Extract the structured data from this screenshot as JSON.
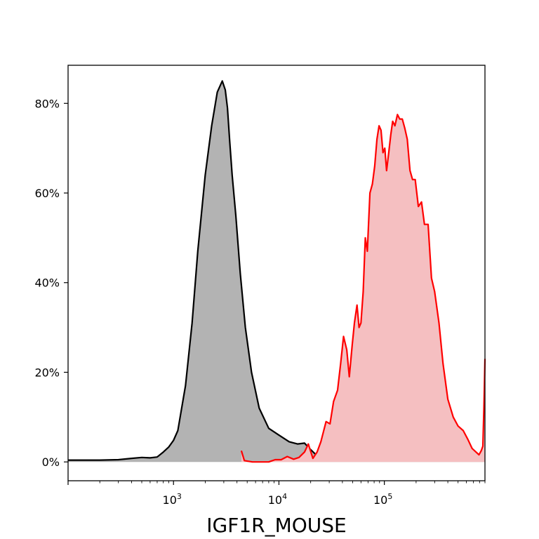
{
  "chart_data": {
    "type": "area",
    "title": "",
    "xlabel": "IGF1R_MOUSE",
    "ylabel": "",
    "x_scale": "log",
    "xlim": [
      100,
      900000
    ],
    "ylim": [
      -0.042,
      0.885
    ],
    "x_ticks": [
      {
        "value": 1000,
        "base": "10",
        "exp": "3"
      },
      {
        "value": 10000,
        "base": "10",
        "exp": "4"
      },
      {
        "value": 100000,
        "base": "10",
        "exp": "5"
      }
    ],
    "y_ticks": [
      {
        "value": 0.0,
        "label": "0%"
      },
      {
        "value": 0.2,
        "label": "20%"
      },
      {
        "value": 0.4,
        "label": "40%"
      },
      {
        "value": 0.6,
        "label": "60%"
      },
      {
        "value": 0.8,
        "label": "80%"
      }
    ],
    "grid": false,
    "legend": "none",
    "series": [
      {
        "color": "#000000",
        "fill": "#b3b3b3",
        "x": [
          100,
          150,
          200,
          300,
          400,
          500,
          600,
          700,
          800,
          900,
          1000,
          1100,
          1300,
          1500,
          1700,
          2000,
          2300,
          2600,
          2900,
          3100,
          3250,
          3400,
          3600,
          3900,
          4300,
          4800,
          5500,
          6500,
          8000,
          10000,
          12500,
          15000,
          17500,
          19500,
          22000,
          26000,
          33000,
          45000,
          65000,
          100000,
          150000,
          220000,
          330000,
          480000,
          650000,
          800000,
          900000
        ],
        "y": [
          0.004,
          0.004,
          0.004,
          0.005,
          0.008,
          0.01,
          0.009,
          0.011,
          0.022,
          0.033,
          0.048,
          0.07,
          0.17,
          0.31,
          0.47,
          0.64,
          0.75,
          0.825,
          0.85,
          0.83,
          0.79,
          0.72,
          0.64,
          0.55,
          0.42,
          0.3,
          0.2,
          0.12,
          0.075,
          0.06,
          0.045,
          0.04,
          0.042,
          0.03,
          0.018,
          0.012,
          0.011,
          0.009,
          0.008,
          0.006,
          0.005,
          0.004,
          0.005,
          0.004,
          0.003,
          0.004,
          0.01
        ]
      },
      {
        "color": "#ff0000",
        "fill": "#f5bfc1",
        "x": [
          4400,
          4700,
          5600,
          8000,
          9200,
          10500,
          12000,
          13800,
          15500,
          17500,
          19000,
          21000,
          23000,
          25000,
          28000,
          30500,
          33000,
          36000,
          38500,
          41000,
          44000,
          46500,
          49500,
          52000,
          55000,
          57500,
          60000,
          63000,
          66000,
          69000,
          73000,
          77000,
          81000,
          85000,
          89000,
          93000,
          97000,
          101000,
          105000,
          110000,
          115000,
          120000,
          126000,
          133000,
          140000,
          148000,
          156000,
          165000,
          175000,
          185000,
          196000,
          210000,
          225000,
          240000,
          260000,
          280000,
          300000,
          330000,
          360000,
          400000,
          450000,
          500000,
          560000,
          620000,
          680000,
          740000,
          790000,
          830000,
          860000,
          880000,
          900000
        ],
        "y": [
          0.025,
          0.003,
          0.0,
          0.0,
          0.005,
          0.005,
          0.012,
          0.006,
          0.01,
          0.022,
          0.04,
          0.008,
          0.022,
          0.045,
          0.09,
          0.085,
          0.135,
          0.16,
          0.22,
          0.28,
          0.25,
          0.19,
          0.26,
          0.31,
          0.35,
          0.3,
          0.31,
          0.38,
          0.5,
          0.47,
          0.6,
          0.62,
          0.66,
          0.72,
          0.75,
          0.74,
          0.69,
          0.7,
          0.65,
          0.69,
          0.73,
          0.76,
          0.75,
          0.775,
          0.765,
          0.765,
          0.745,
          0.72,
          0.65,
          0.63,
          0.63,
          0.57,
          0.58,
          0.53,
          0.53,
          0.41,
          0.38,
          0.31,
          0.22,
          0.14,
          0.1,
          0.08,
          0.07,
          0.05,
          0.03,
          0.022,
          0.016,
          0.025,
          0.035,
          0.12,
          0.23
        ]
      }
    ]
  }
}
